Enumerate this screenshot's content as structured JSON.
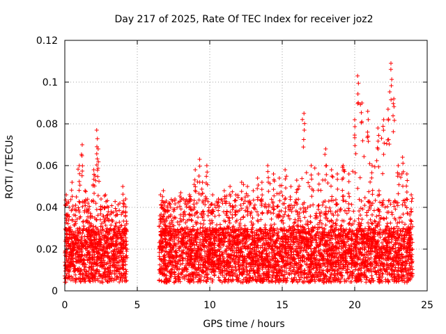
{
  "chart_data": {
    "type": "scatter",
    "title": "Day 217 of 2025, Rate Of TEC Index for receiver joz2",
    "xlabel": "GPS time / hours",
    "ylabel": "ROTI / TECUs",
    "xlim": [
      0,
      25
    ],
    "ylim": [
      0,
      0.12
    ],
    "grid": true,
    "marker": "+",
    "series_color": "#ff0000",
    "x_ticks": [
      0,
      5,
      10,
      15,
      20,
      25
    ],
    "x_tick_labels": [
      "0",
      "5",
      "10",
      "15",
      "20",
      "25"
    ],
    "y_ticks": [
      0,
      0.02,
      0.04,
      0.06,
      0.08,
      0.1,
      0.12
    ],
    "y_tick_labels": [
      "0",
      "0.02",
      "0.04",
      "0.06",
      "0.08",
      "0.1",
      "0.12"
    ],
    "segments": [
      {
        "x_start": 0.0,
        "x_end": 4.3
      },
      {
        "x_start": 6.5,
        "x_end": 24.0
      }
    ],
    "series": [
      {
        "name": "ROTI",
        "x": [
          0.1,
          0.3,
          0.5,
          0.8,
          1.0,
          1.2,
          1.4,
          1.6,
          1.8,
          2.0,
          2.2,
          2.3,
          2.5,
          2.8,
          3.0,
          3.2,
          3.5,
          3.8,
          4.0,
          4.2,
          6.6,
          6.8,
          7.0,
          7.3,
          7.6,
          8.0,
          8.3,
          8.6,
          9.0,
          9.3,
          9.5,
          9.8,
          10.2,
          10.6,
          11.0,
          11.4,
          11.8,
          12.2,
          12.6,
          13.0,
          13.3,
          13.6,
          14.0,
          14.4,
          14.8,
          15.2,
          15.6,
          16.0,
          16.5,
          17.0,
          17.5,
          18.0,
          18.4,
          18.8,
          19.2,
          19.6,
          20.0,
          20.2,
          20.5,
          20.9,
          21.2,
          21.6,
          22.0,
          22.3,
          22.5,
          22.7,
          23.0,
          23.3,
          23.6,
          23.9
        ],
        "values": [
          0.046,
          0.04,
          0.052,
          0.045,
          0.06,
          0.07,
          0.048,
          0.042,
          0.036,
          0.058,
          0.077,
          0.068,
          0.044,
          0.046,
          0.04,
          0.038,
          0.036,
          0.042,
          0.05,
          0.044,
          0.046,
          0.048,
          0.043,
          0.04,
          0.044,
          0.047,
          0.042,
          0.046,
          0.058,
          0.063,
          0.052,
          0.06,
          0.046,
          0.044,
          0.048,
          0.05,
          0.046,
          0.052,
          0.05,
          0.048,
          0.054,
          0.052,
          0.06,
          0.056,
          0.054,
          0.058,
          0.05,
          0.053,
          0.085,
          0.06,
          0.056,
          0.068,
          0.058,
          0.056,
          0.06,
          0.056,
          0.082,
          0.103,
          0.09,
          0.086,
          0.06,
          0.078,
          0.082,
          0.087,
          0.109,
          0.092,
          0.06,
          0.064,
          0.056,
          0.046
        ]
      }
    ]
  }
}
